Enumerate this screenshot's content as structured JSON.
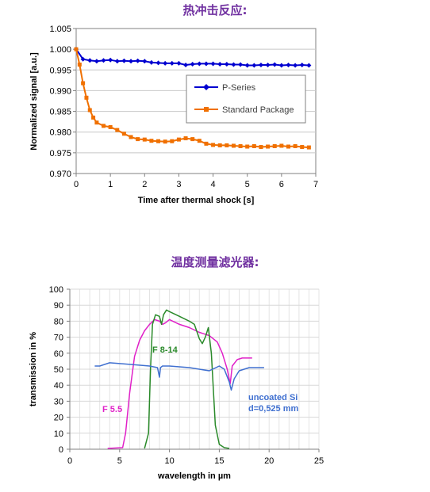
{
  "section_titles": {
    "thermal_shock": "热冲击反应:",
    "filters": "温度测量滤光器:"
  },
  "colors": {
    "title": "#7030a0",
    "p_series": "#0000d0",
    "standard": "#f07000",
    "f55": "#e020c8",
    "f814": "#2a8a2a",
    "si": "#4070d0"
  },
  "chart_data": [
    {
      "type": "line",
      "title": "热冲击反应:",
      "xlabel": "Time after thermal shock [s]",
      "ylabel": "Normalized signal [a.u.]",
      "xlim": [
        0,
        7
      ],
      "ylim": [
        0.97,
        1.005
      ],
      "xticks": [
        "0",
        "1",
        "2",
        "3",
        "4",
        "5",
        "6",
        "7"
      ],
      "yticks": [
        "0.970",
        "0.975",
        "0.980",
        "0.985",
        "0.990",
        "0.995",
        "1.000",
        "1.005"
      ],
      "grid": true,
      "legend": "right",
      "series": [
        {
          "name": "P-Series",
          "marker": "diamond",
          "x": [
            0.0,
            0.2,
            0.4,
            0.6,
            0.8,
            1.0,
            1.2,
            1.4,
            1.6,
            1.8,
            2.0,
            2.2,
            2.4,
            2.6,
            2.8,
            3.0,
            3.2,
            3.4,
            3.6,
            3.8,
            4.0,
            4.2,
            4.4,
            4.6,
            4.8,
            5.0,
            5.2,
            5.4,
            5.6,
            5.8,
            6.0,
            6.2,
            6.4,
            6.6,
            6.8
          ],
          "y": [
            1.0,
            0.9976,
            0.9973,
            0.9971,
            0.9973,
            0.9974,
            0.9971,
            0.9972,
            0.9971,
            0.9972,
            0.9971,
            0.9968,
            0.9967,
            0.9966,
            0.9966,
            0.9966,
            0.9962,
            0.9964,
            0.9965,
            0.9965,
            0.9965,
            0.9964,
            0.9964,
            0.9963,
            0.9963,
            0.9961,
            0.9961,
            0.9962,
            0.9962,
            0.9963,
            0.9961,
            0.9962,
            0.9961,
            0.9962,
            0.9961
          ]
        },
        {
          "name": "Standard Package",
          "marker": "square",
          "x": [
            0.0,
            0.1,
            0.2,
            0.3,
            0.4,
            0.5,
            0.6,
            0.8,
            1.0,
            1.2,
            1.4,
            1.6,
            1.8,
            2.0,
            2.2,
            2.4,
            2.6,
            2.8,
            3.0,
            3.2,
            3.4,
            3.6,
            3.8,
            4.0,
            4.2,
            4.4,
            4.6,
            4.8,
            5.0,
            5.2,
            5.4,
            5.6,
            5.8,
            6.0,
            6.2,
            6.4,
            6.6,
            6.8
          ],
          "y": [
            1.0,
            0.9963,
            0.9918,
            0.9883,
            0.9853,
            0.9835,
            0.9823,
            0.9815,
            0.9812,
            0.9805,
            0.9796,
            0.9788,
            0.9783,
            0.9782,
            0.9779,
            0.9778,
            0.9777,
            0.9778,
            0.9782,
            0.9785,
            0.9783,
            0.9779,
            0.9772,
            0.9769,
            0.9768,
            0.9768,
            0.9767,
            0.9766,
            0.9765,
            0.9766,
            0.9764,
            0.9765,
            0.9766,
            0.9767,
            0.9765,
            0.9766,
            0.9764,
            0.9763
          ]
        }
      ]
    },
    {
      "type": "line",
      "title": "温度测量滤光器:",
      "xlabel": "wavelength in µm",
      "ylabel": "transmission in %",
      "xlim": [
        0,
        25
      ],
      "ylim": [
        0,
        100
      ],
      "xticks": [
        "0",
        "5",
        "10",
        "15",
        "20",
        "25"
      ],
      "yticks": [
        "0",
        "10",
        "20",
        "30",
        "40",
        "50",
        "60",
        "70",
        "80",
        "90",
        "100"
      ],
      "grid": true,
      "series": [
        {
          "name": "F 5.5",
          "x": [
            3.8,
            5.3,
            5.6,
            6.0,
            6.5,
            7.0,
            7.5,
            8.0,
            8.5,
            9.0,
            9.3,
            9.6,
            10.0,
            11.0,
            12.0,
            13.0,
            14.0,
            14.8,
            15.3,
            15.8,
            16.1,
            16.3,
            16.8,
            17.3,
            18.3
          ],
          "y": [
            0.5,
            1,
            10,
            35,
            58,
            68,
            74,
            78,
            81,
            80,
            78,
            79,
            81,
            78,
            76,
            73,
            71,
            67,
            60,
            50,
            41,
            52,
            56,
            57,
            57
          ]
        },
        {
          "name": "F 8-14",
          "x": [
            7.5,
            7.9,
            8.1,
            8.3,
            8.6,
            9.0,
            9.2,
            9.4,
            9.7,
            10.0,
            11.0,
            12.0,
            12.5,
            13.0,
            13.3,
            13.6,
            13.9,
            14.2,
            14.6,
            15.0,
            15.5,
            16.0
          ],
          "y": [
            0.5,
            10,
            50,
            78,
            84,
            83,
            78,
            84,
            87,
            86,
            83,
            80,
            78,
            69,
            66,
            70,
            76,
            60,
            15,
            3,
            1,
            0.5
          ]
        },
        {
          "name": "uncoated Si d=0,525 mm",
          "x": [
            2.5,
            3.0,
            4.0,
            6.0,
            8.0,
            8.8,
            9.0,
            9.1,
            9.3,
            10.0,
            12.0,
            14.0,
            15.0,
            15.5,
            16.0,
            16.2,
            16.5,
            17.0,
            18.0,
            19.5
          ],
          "y": [
            52,
            52,
            54,
            53,
            52,
            51,
            45,
            51,
            52,
            52,
            51,
            49,
            52,
            50,
            42,
            37,
            44,
            49,
            51,
            51
          ]
        }
      ]
    }
  ],
  "annotations": {
    "f55": "F 5.5",
    "f814": "F 8-14",
    "si_line1": "uncoated Si",
    "si_line2": "d=0,525 mm"
  }
}
